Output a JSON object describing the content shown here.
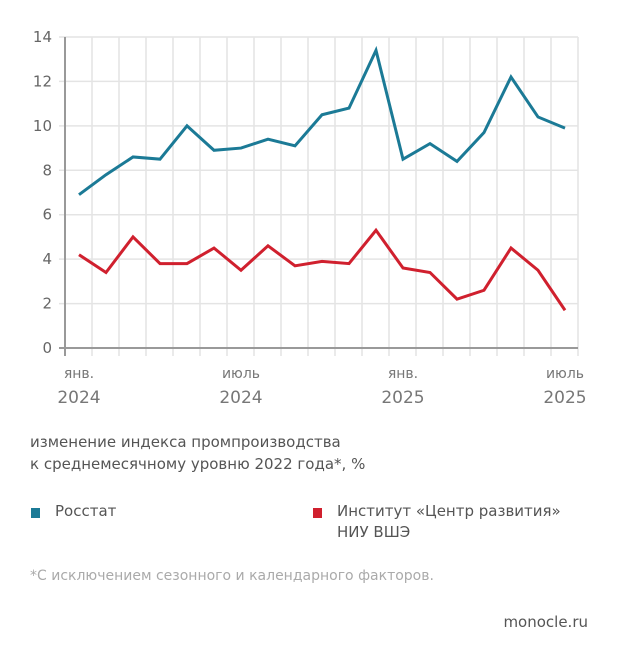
{
  "chart_data": {
    "type": "line",
    "title": "",
    "subtitle": "изменение индекса промпроизводства к среднемесячному уровню 2022 года*, %",
    "xlabel": "",
    "ylabel": "",
    "ylim": [
      0,
      14
    ],
    "yticks": [
      "0",
      "2",
      "4",
      "6",
      "8",
      "10",
      "12",
      "14"
    ],
    "grid": true,
    "x": [
      "янв. 2024",
      "фев. 2024",
      "мар. 2024",
      "апр. 2024",
      "май 2024",
      "июн. 2024",
      "июль 2024",
      "авг. 2024",
      "сен. 2024",
      "окт. 2024",
      "ноя. 2024",
      "дек. 2024",
      "янв. 2025",
      "фев. 2025",
      "мар. 2025",
      "апр. 2025",
      "май 2025",
      "июн. 2025",
      "июль 2025"
    ],
    "xtick_labels": [
      {
        "index": 0,
        "month": "янв.",
        "year": "2024"
      },
      {
        "index": 6,
        "month": "июль",
        "year": "2024"
      },
      {
        "index": 12,
        "month": "янв.",
        "year": "2025"
      },
      {
        "index": 18,
        "month": "июль",
        "year": "2025"
      }
    ],
    "series": [
      {
        "name": "Росстат",
        "color": "#1b7a96",
        "values": [
          6.9,
          7.8,
          8.6,
          8.5,
          10.0,
          8.9,
          9.0,
          9.4,
          9.1,
          10.5,
          10.8,
          13.4,
          8.5,
          9.2,
          8.4,
          9.7,
          12.2,
          10.4,
          9.9
        ]
      },
      {
        "name": "Институт «Центр развития» НИУ ВШЭ",
        "name_line1": "Институт «Центр развития»",
        "name_line2": "НИУ ВШЭ",
        "color": "#d0202e",
        "values": [
          4.2,
          3.4,
          5.0,
          3.8,
          3.8,
          4.5,
          3.5,
          4.6,
          3.7,
          3.9,
          3.8,
          5.3,
          3.6,
          3.4,
          2.2,
          2.6,
          4.5,
          3.5,
          1.7
        ]
      }
    ],
    "legend_position": "bottom"
  },
  "footnote": "*С исключением сезонного и календарного факторов.",
  "source": "monocle.ru",
  "subtitle_line1": "изменение индекса промпроизводства",
  "subtitle_line2": "к среднемесячному уровню 2022 года*, %"
}
